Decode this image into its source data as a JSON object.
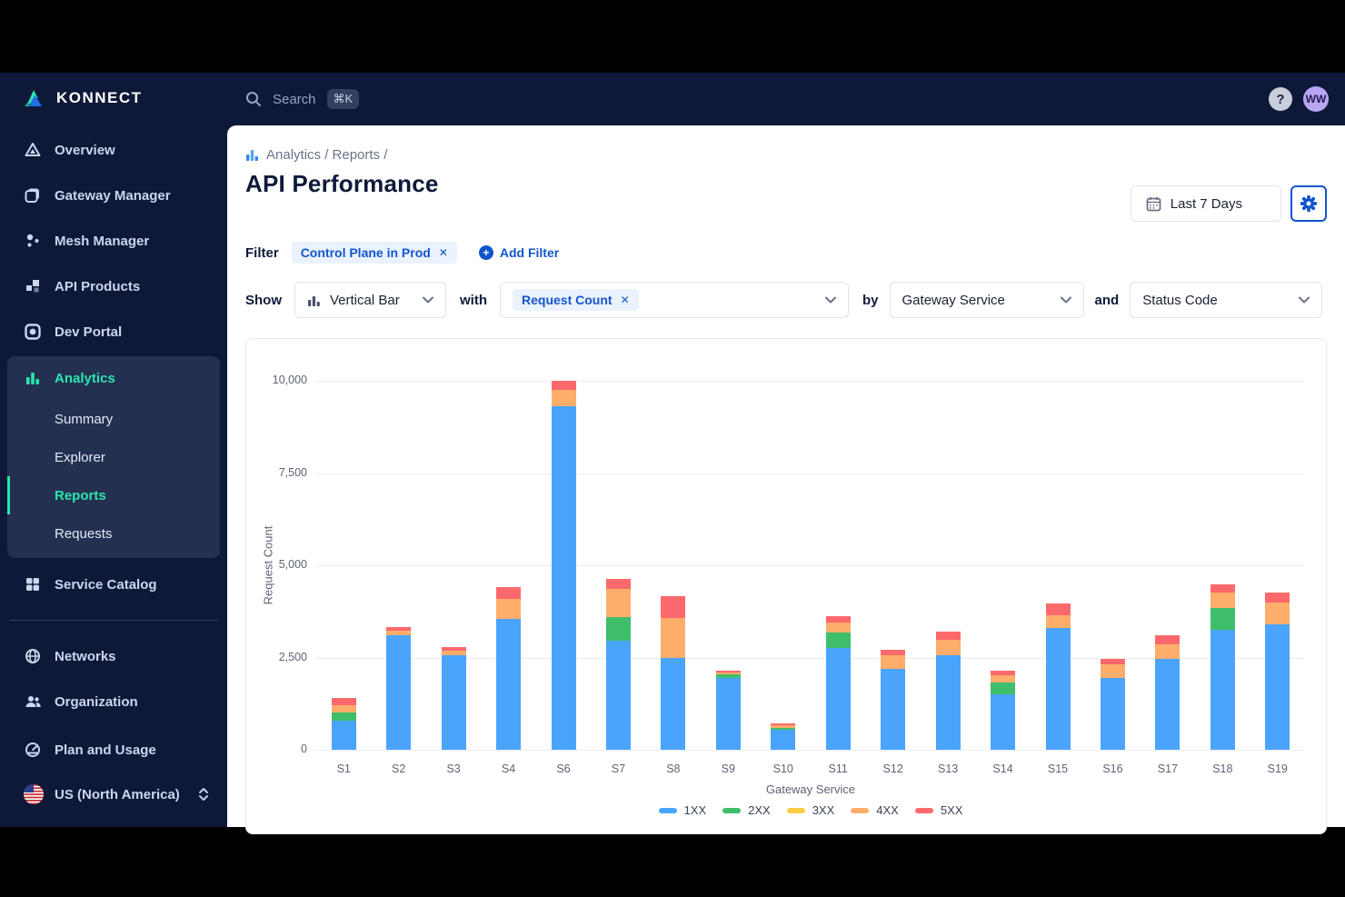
{
  "topbar": {
    "search_label": "Search",
    "search_shortcut": "⌘K",
    "help_label": "?",
    "avatar_initials": "WW"
  },
  "sidebar": {
    "logo_text": "KONNECT",
    "items": [
      {
        "label": "Overview",
        "icon": "triangle-overview-icon"
      },
      {
        "label": "Gateway Manager",
        "icon": "stacked-squares-icon"
      },
      {
        "label": "Mesh Manager",
        "icon": "dots-mesh-icon"
      },
      {
        "label": "API Products",
        "icon": "blocks-icon"
      },
      {
        "label": "Dev Portal",
        "icon": "portal-icon"
      }
    ],
    "analytics": {
      "label": "Analytics",
      "icon": "bar-chart-icon",
      "subitems": [
        {
          "label": "Summary"
        },
        {
          "label": "Explorer"
        },
        {
          "label": "Reports",
          "active": true
        },
        {
          "label": "Requests"
        }
      ]
    },
    "service_catalog_label": "Service Catalog",
    "bottom_items": [
      {
        "label": "Networks",
        "icon": "globe-icon"
      },
      {
        "label": "Organization",
        "icon": "people-icon"
      }
    ],
    "plan_label": "Plan and Usage",
    "region_label": "US (North America)"
  },
  "header": {
    "breadcrumb": "Analytics / Reports /",
    "title": "API Performance",
    "date_range": "Last 7 Days"
  },
  "filter": {
    "label": "Filter",
    "chip": "Control Plane in Prod",
    "chip_remove": "✕",
    "add_label": "Add Filter",
    "plus": "+"
  },
  "controls": {
    "show_label": "Show",
    "chart_type": "Vertical Bar",
    "with_label": "with",
    "metric_chip": "Request Count",
    "metric_chip_remove": "✕",
    "by_label": "by",
    "group_by": "Gateway Service",
    "and_label": "and",
    "split_by": "Status Code"
  },
  "colors": {
    "sidebar_bg": "#0E1838",
    "active_teal": "#2BE5AE",
    "primary_blue": "#1155CB",
    "chip_bg": "#EAF2FE",
    "series_blue": "#4AA4FC",
    "series_green": "#3EBE6A",
    "series_yellow": "#F9CE45",
    "series_orange": "#FFAD6B",
    "series_red": "#FC696C"
  },
  "chart_data": {
    "type": "bar",
    "stacked": true,
    "xlabel": "Gateway Service",
    "ylabel": "Request Count",
    "ylim": [
      0,
      10000
    ],
    "yticks": [
      0,
      2500,
      5000,
      7500,
      10000
    ],
    "ytick_labels": [
      "0",
      "2,500",
      "5,000",
      "7,500",
      "10,000"
    ],
    "grid": true,
    "legend_position": "bottom",
    "categories": [
      "S1",
      "S2",
      "S3",
      "S4",
      "S6",
      "S7",
      "S8",
      "S9",
      "S10",
      "S11",
      "S12",
      "S13",
      "S14",
      "S15",
      "S16",
      "S17",
      "S18",
      "S19"
    ],
    "series": [
      {
        "name": "1XX",
        "color": "#4AA4FC",
        "values": [
          800,
          3100,
          2550,
          3550,
          9300,
          2950,
          2480,
          1950,
          530,
          2750,
          2200,
          2550,
          1500,
          3300,
          1950,
          2470,
          3250,
          3400
        ]
      },
      {
        "name": "2XX",
        "color": "#3EBE6A",
        "values": [
          210,
          0,
          0,
          0,
          0,
          650,
          0,
          90,
          60,
          420,
          0,
          0,
          330,
          0,
          0,
          0,
          600,
          0
        ]
      },
      {
        "name": "3XX",
        "color": "#F9CE45",
        "values": [
          0,
          0,
          0,
          0,
          0,
          0,
          0,
          0,
          0,
          0,
          0,
          0,
          0,
          0,
          0,
          0,
          0,
          0
        ]
      },
      {
        "name": "4XX",
        "color": "#FFAD6B",
        "values": [
          190,
          130,
          130,
          530,
          450,
          750,
          1080,
          60,
          80,
          270,
          360,
          430,
          200,
          350,
          360,
          390,
          420,
          580
        ]
      },
      {
        "name": "5XX",
        "color": "#FC696C",
        "values": [
          200,
          90,
          100,
          330,
          250,
          270,
          600,
          50,
          50,
          180,
          150,
          220,
          120,
          320,
          150,
          240,
          210,
          280
        ]
      }
    ]
  }
}
